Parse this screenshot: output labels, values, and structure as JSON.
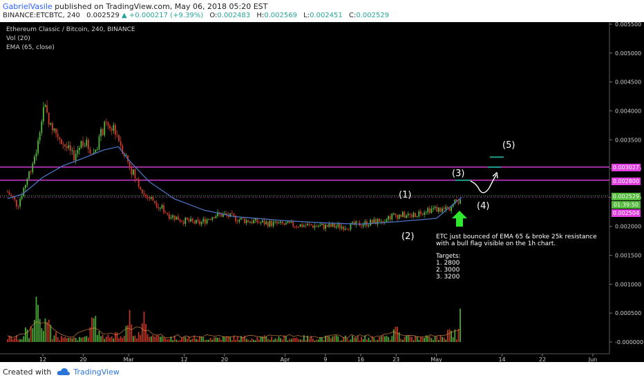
{
  "header": {
    "author": "GabrielVasile",
    "published_text": "published on TradingView.com, May 06, 2018 05:20 EST",
    "symbol_line": "BINANCE:ETCBTC, 240",
    "last_price": "0.002529",
    "change": "+0.000217 (+9.39%)",
    "open_label": "O:",
    "open": "0.002483",
    "high_label": "H:",
    "high": "0.002569",
    "low_label": "L:",
    "low": "0.002451",
    "close_label": "C:",
    "close": "0.002529"
  },
  "chart_info": {
    "title": "Ethereum Classic / Bitcoin, 240, BINANCE",
    "volume": "Vol (20)",
    "ema": "EMA (65, close)"
  },
  "annotation": {
    "text": "ETC just bounced of EMA 65 & broke 25k resistance with a bull flag visible on the 1h chart.",
    "targets_title": "Targets:",
    "targets": [
      "1. 2800",
      "2. 3000",
      "3. 3200"
    ]
  },
  "waves": [
    "(1)",
    "(2)",
    "(3)",
    "(4)",
    "(5)"
  ],
  "price_tags": {
    "line_upper": "0.003027",
    "line_middle": "0.002800",
    "last": "0.002529",
    "countdown": "01:39:50",
    "ema": "0.002504"
  },
  "footer": {
    "created_with": "Created with",
    "brand": "TradingView"
  },
  "colors": {
    "background": "#000000",
    "up": "#53b93a",
    "down": "#d13a26",
    "ema": "#4a74c4",
    "magenta_line": "#e23ee2",
    "arrow": "#2ee82e",
    "target_marker": "#1fa08a"
  },
  "chart_data": {
    "type": "candlestick",
    "title": "Ethereum Classic / Bitcoin, 240, BINANCE",
    "ylim": [
      -0.0001,
      0.0057
    ],
    "y_ticks": [
      "0.005500",
      "0.005000",
      "0.004500",
      "0.004000",
      "0.003500",
      "0.003000",
      "0.002500",
      "0.002000",
      "0.001500",
      "0.001000",
      "0.000500",
      "-0.000000"
    ],
    "y_tick_values": [
      0.0055,
      0.005,
      0.0045,
      0.004,
      0.0035,
      0.003,
      0.0025,
      0.002,
      0.0015,
      0.001,
      0.0005,
      0.0
    ],
    "x_ticks": [
      "12",
      "20",
      "Mar",
      "12",
      "20",
      "Apr",
      "9",
      "16",
      "23",
      "May",
      "14",
      "22",
      "Jun"
    ],
    "x_tick_dates": [
      "2018-02-12",
      "2018-02-20",
      "2018-03-01",
      "2018-03-12",
      "2018-03-20",
      "2018-04-01",
      "2018-04-09",
      "2018-04-16",
      "2018-04-23",
      "2018-05-01",
      "2018-05-14",
      "2018-05-22",
      "2018-06-01"
    ],
    "price_path": [
      [
        "2018-02-05",
        0.0026
      ],
      [
        "2018-02-07",
        0.00237
      ],
      [
        "2018-02-09",
        0.00285
      ],
      [
        "2018-02-11",
        0.0034
      ],
      [
        "2018-02-12",
        0.0041
      ],
      [
        "2018-02-14",
        0.0037
      ],
      [
        "2018-02-16",
        0.00345
      ],
      [
        "2018-02-18",
        0.0032
      ],
      [
        "2018-02-20",
        0.0035
      ],
      [
        "2018-02-22",
        0.00325
      ],
      [
        "2018-02-24",
        0.0037
      ],
      [
        "2018-02-26",
        0.00375
      ],
      [
        "2018-02-28",
        0.0033
      ],
      [
        "2018-03-02",
        0.0029
      ],
      [
        "2018-03-04",
        0.00255
      ],
      [
        "2018-03-06",
        0.00245
      ],
      [
        "2018-03-09",
        0.0022
      ],
      [
        "2018-03-12",
        0.0021
      ],
      [
        "2018-03-15",
        0.00205
      ],
      [
        "2018-03-18",
        0.0022
      ],
      [
        "2018-03-20",
        0.0022
      ],
      [
        "2018-03-23",
        0.00212
      ],
      [
        "2018-03-27",
        0.00207
      ],
      [
        "2018-04-01",
        0.00203
      ],
      [
        "2018-04-05",
        0.00202
      ],
      [
        "2018-04-09",
        0.002
      ],
      [
        "2018-04-13",
        0.002
      ],
      [
        "2018-04-16",
        0.00204
      ],
      [
        "2018-04-19",
        0.00208
      ],
      [
        "2018-04-21",
        0.00215
      ],
      [
        "2018-04-23",
        0.0022
      ],
      [
        "2018-04-26",
        0.00218
      ],
      [
        "2018-04-29",
        0.0023
      ],
      [
        "2018-05-01",
        0.0023
      ],
      [
        "2018-05-03",
        0.00228
      ],
      [
        "2018-05-05",
        0.00243
      ],
      [
        "2018-05-06",
        0.002529
      ]
    ],
    "ema_65": [
      [
        "2018-02-05",
        0.00248
      ],
      [
        "2018-02-08",
        0.00256
      ],
      [
        "2018-02-12",
        0.00285
      ],
      [
        "2018-02-16",
        0.00305
      ],
      [
        "2018-02-20",
        0.00318
      ],
      [
        "2018-02-24",
        0.00332
      ],
      [
        "2018-02-27",
        0.00338
      ],
      [
        "2018-03-01",
        0.00315
      ],
      [
        "2018-03-05",
        0.00278
      ],
      [
        "2018-03-10",
        0.00248
      ],
      [
        "2018-03-16",
        0.00228
      ],
      [
        "2018-03-22",
        0.00217
      ],
      [
        "2018-04-01",
        0.0021
      ],
      [
        "2018-04-09",
        0.00206
      ],
      [
        "2018-04-16",
        0.00204
      ],
      [
        "2018-04-23",
        0.00208
      ],
      [
        "2018-05-01",
        0.00214
      ],
      [
        "2018-05-06",
        0.002504
      ]
    ],
    "horizontal_lines": [
      0.003027,
      0.0028
    ],
    "target_markers": [
      0.0028,
      0.003027,
      0.0032
    ],
    "volume_peaks": [
      [
        "2018-02-11",
        0.00095
      ],
      [
        "2018-02-13",
        0.0008
      ],
      [
        "2018-02-22",
        0.0007
      ],
      [
        "2018-03-01",
        0.00062
      ],
      [
        "2018-03-04",
        0.00055
      ],
      [
        "2018-04-23",
        0.00035
      ],
      [
        "2018-05-06",
        0.00085
      ]
    ]
  }
}
